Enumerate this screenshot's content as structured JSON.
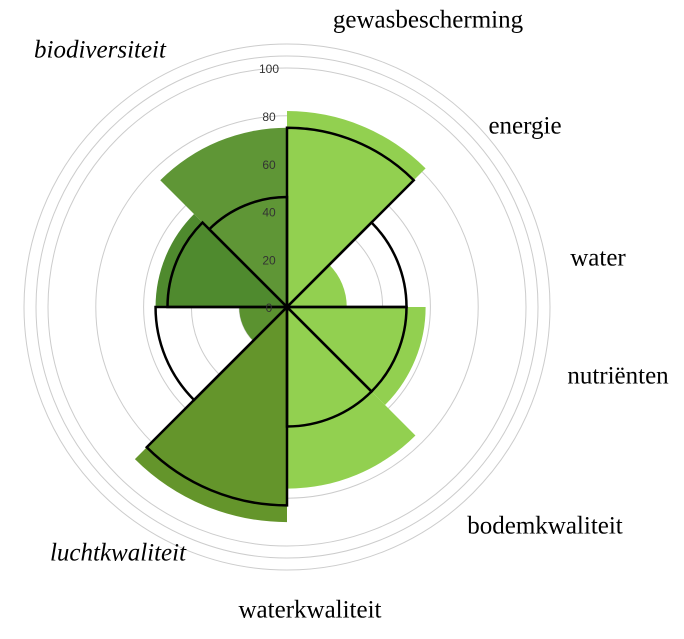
{
  "chart_data": {
    "type": "polar-area",
    "categories": [
      "gewasbescherming",
      "energie",
      "water",
      "nutriënten",
      "bodemkwaliteit",
      "waterkwaliteit",
      "luchtkwaliteit",
      "biodiversiteit"
    ],
    "label_style": [
      "normal",
      "normal",
      "normal",
      "normal",
      "normal",
      "normal",
      "italic",
      "italic"
    ],
    "series": [
      {
        "style": "filled",
        "values": [
          82,
          25,
          58,
          76,
          90,
          20,
          55,
          75
        ],
        "colors": [
          "#92d050",
          "#92d050",
          "#92d050",
          "#92d050",
          "#64952b",
          "#5b9230",
          "#4f8a2e",
          "#5f9636"
        ]
      },
      {
        "style": "outline",
        "color": "#000000",
        "values": [
          75,
          50,
          50,
          50,
          83,
          55,
          50,
          46
        ]
      }
    ],
    "ylim": [
      0,
      100
    ],
    "yticks": [
      0,
      20,
      40,
      60,
      80,
      100
    ],
    "grid": true
  }
}
